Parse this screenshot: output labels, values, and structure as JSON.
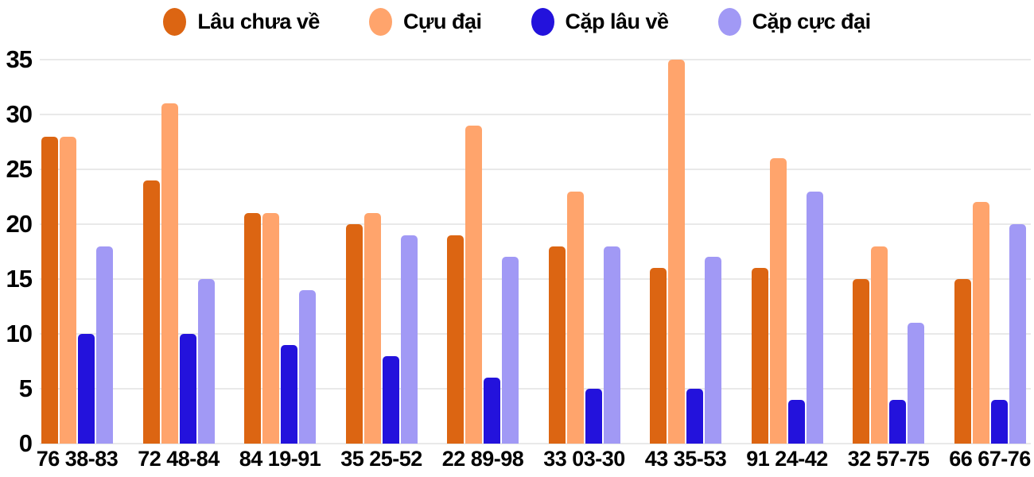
{
  "chart_data": {
    "type": "bar",
    "title": "",
    "xlabel": "",
    "ylabel": "",
    "categories": [
      "76 38-83",
      "72 48-84",
      "84 19-91",
      "35 25-52",
      "22 89-98",
      "33 03-30",
      "43 35-53",
      "91 24-42",
      "32 57-75",
      "66 67-76"
    ],
    "series": [
      {
        "name": "Lâu chưa về",
        "color": "#DC6512",
        "values": [
          28,
          24,
          21,
          20,
          19,
          18,
          16,
          16,
          15,
          15
        ]
      },
      {
        "name": "Cựu đại",
        "color": "#FFA46C",
        "values": [
          28,
          31,
          21,
          21,
          29,
          23,
          35,
          26,
          18,
          22
        ]
      },
      {
        "name": "Cặp lâu về",
        "color": "#2312DC",
        "values": [
          10,
          10,
          9,
          8,
          6,
          5,
          5,
          4,
          4,
          4
        ]
      },
      {
        "name": "Cặp cực đại",
        "color": "#A199F5",
        "values": [
          18,
          15,
          14,
          19,
          17,
          18,
          17,
          23,
          11,
          20
        ]
      }
    ],
    "ylim": [
      0,
      35
    ],
    "yticks": [
      0,
      5,
      10,
      15,
      20,
      25,
      30,
      35
    ],
    "grid": true,
    "legend_position": "top",
    "gridline_color": "#e9e9e9",
    "axis_text_color": "#000000",
    "background_color": "#ffffff"
  }
}
